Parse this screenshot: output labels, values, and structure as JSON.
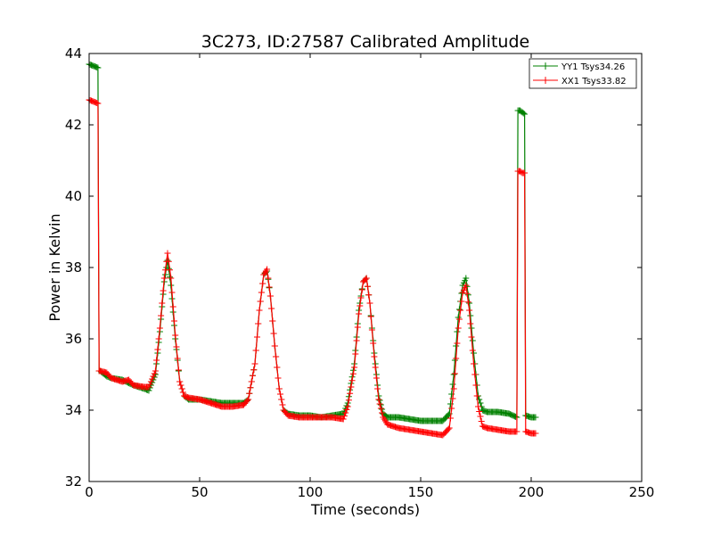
{
  "chart_data": {
    "type": "line",
    "title": "3C273, ID:27587 Calibrated Amplitude",
    "xlabel": "Time (seconds)",
    "ylabel": "Power in Kelvin",
    "xlim": [
      0,
      250
    ],
    "ylim": [
      32,
      44
    ],
    "x_ticks": [
      0,
      50,
      100,
      150,
      200,
      250
    ],
    "y_ticks": [
      32,
      34,
      36,
      38,
      40,
      42,
      44
    ],
    "x_tick_labels": [
      "0",
      "50",
      "100",
      "150",
      "200",
      "250"
    ],
    "y_tick_labels": [
      "32",
      "34",
      "36",
      "38",
      "40",
      "42",
      "44"
    ],
    "grid": false,
    "legend_position": "top-right",
    "marker": "+",
    "series": [
      {
        "name": "YY1 Tsys34.26",
        "color": "#008000",
        "x": [
          0,
          2,
          4,
          4.5,
          5,
          8,
          10,
          15,
          20,
          25,
          27,
          30,
          32,
          34,
          35.5,
          37,
          39,
          41,
          43,
          45,
          50,
          55,
          60,
          65,
          70,
          72,
          75,
          77,
          79,
          80.5,
          82,
          84,
          86,
          88,
          90,
          95,
          100,
          105,
          110,
          115,
          117,
          120,
          122,
          124,
          125.5,
          127,
          129,
          131,
          133,
          135,
          140,
          145,
          150,
          155,
          160,
          163,
          165,
          167,
          169,
          170.5,
          172,
          174,
          176,
          178,
          180,
          185,
          190,
          193.5,
          194,
          195,
          196,
          197,
          197.5,
          200,
          202
        ],
        "y": [
          43.7,
          43.65,
          43.6,
          35.1,
          35.1,
          34.95,
          34.9,
          34.85,
          34.7,
          34.6,
          34.55,
          35.0,
          36.2,
          37.6,
          38.2,
          37.5,
          36.0,
          34.8,
          34.4,
          34.3,
          34.3,
          34.25,
          34.2,
          34.2,
          34.2,
          34.3,
          35.3,
          36.8,
          37.8,
          37.9,
          37.2,
          35.8,
          34.6,
          34.0,
          33.9,
          33.85,
          33.85,
          33.8,
          33.85,
          33.9,
          34.2,
          35.3,
          36.8,
          37.6,
          37.7,
          37.0,
          35.6,
          34.4,
          33.9,
          33.8,
          33.8,
          33.75,
          33.7,
          33.7,
          33.7,
          33.9,
          35.0,
          36.6,
          37.5,
          37.7,
          37.0,
          35.6,
          34.4,
          34.0,
          33.95,
          33.95,
          33.9,
          33.8,
          42.4,
          42.4,
          42.35,
          42.3,
          33.85,
          33.8,
          33.8
        ]
      },
      {
        "name": "XX1 Tsys33.82",
        "color": "#ff0000",
        "x": [
          0,
          2,
          4,
          4.5,
          5,
          8,
          10,
          15,
          18,
          20,
          25,
          27,
          30,
          32,
          34,
          35.5,
          37,
          39,
          41,
          43,
          45,
          50,
          55,
          60,
          65,
          70,
          72,
          75,
          77,
          79,
          80.5,
          82,
          84,
          86,
          88,
          90,
          95,
          100,
          105,
          110,
          115,
          117,
          120,
          122,
          124,
          125.5,
          127,
          129,
          131,
          133,
          135,
          140,
          145,
          150,
          155,
          160,
          163,
          165,
          167,
          169,
          170.5,
          172,
          174,
          176,
          178,
          180,
          185,
          190,
          193.5,
          194,
          195,
          196,
          197,
          197.5,
          200,
          202
        ],
        "y": [
          42.7,
          42.65,
          42.6,
          35.1,
          35.1,
          35.05,
          34.9,
          34.8,
          34.85,
          34.7,
          34.65,
          34.65,
          35.1,
          36.3,
          37.7,
          38.4,
          37.7,
          36.1,
          34.8,
          34.4,
          34.35,
          34.3,
          34.2,
          34.1,
          34.1,
          34.15,
          34.3,
          35.3,
          36.8,
          37.8,
          37.95,
          37.2,
          35.8,
          34.6,
          34.0,
          33.85,
          33.8,
          33.8,
          33.8,
          33.8,
          33.75,
          34.1,
          35.2,
          36.7,
          37.6,
          37.7,
          37.0,
          35.5,
          34.3,
          33.8,
          33.6,
          33.5,
          33.45,
          33.4,
          33.35,
          33.3,
          33.5,
          34.6,
          36.3,
          37.3,
          37.5,
          36.8,
          35.3,
          34.1,
          33.55,
          33.5,
          33.45,
          33.4,
          33.4,
          40.7,
          40.7,
          40.65,
          40.65,
          33.4,
          33.35,
          33.35
        ]
      }
    ]
  }
}
